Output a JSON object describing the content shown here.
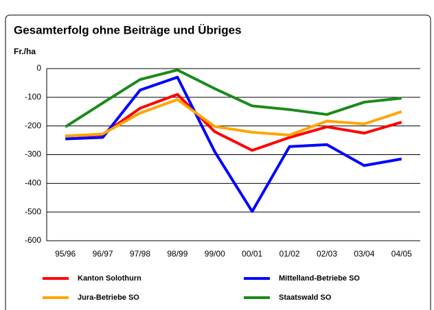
{
  "chart_data": {
    "type": "line",
    "title": "Gesamterfolg ohne Beiträge und Übriges",
    "y_label": "Fr./ha",
    "categories": [
      "95/96",
      "96/97",
      "97/98",
      "98/99",
      "99/00",
      "00/01",
      "01/02",
      "02/03",
      "03/04",
      "04/05"
    ],
    "series": [
      {
        "name": "Kanton Solothurn",
        "color": "#ff0000",
        "values": [
          -235,
          -230,
          -138,
          -90,
          -220,
          -285,
          -240,
          -203,
          -225,
          -187
        ]
      },
      {
        "name": "Mittelland-Betriebe SO",
        "color": "#0000ff",
        "values": [
          -245,
          -240,
          -75,
          -30,
          -290,
          -498,
          -272,
          -265,
          -338,
          -315
        ]
      },
      {
        "name": "Jura-Betriebe SO",
        "color": "#ffa500",
        "values": [
          -235,
          -228,
          -155,
          -108,
          -202,
          -222,
          -232,
          -183,
          -193,
          -150
        ]
      },
      {
        "name": "Staatswald SO",
        "color": "#1a8a1a",
        "values": [
          -203,
          -120,
          -38,
          -5,
          -70,
          -130,
          -143,
          -160,
          -117,
          -103
        ]
      }
    ],
    "ylim": [
      -600,
      0
    ],
    "yticks": [
      0,
      -100,
      -200,
      -300,
      -400,
      -500,
      -600
    ],
    "grid": true
  }
}
